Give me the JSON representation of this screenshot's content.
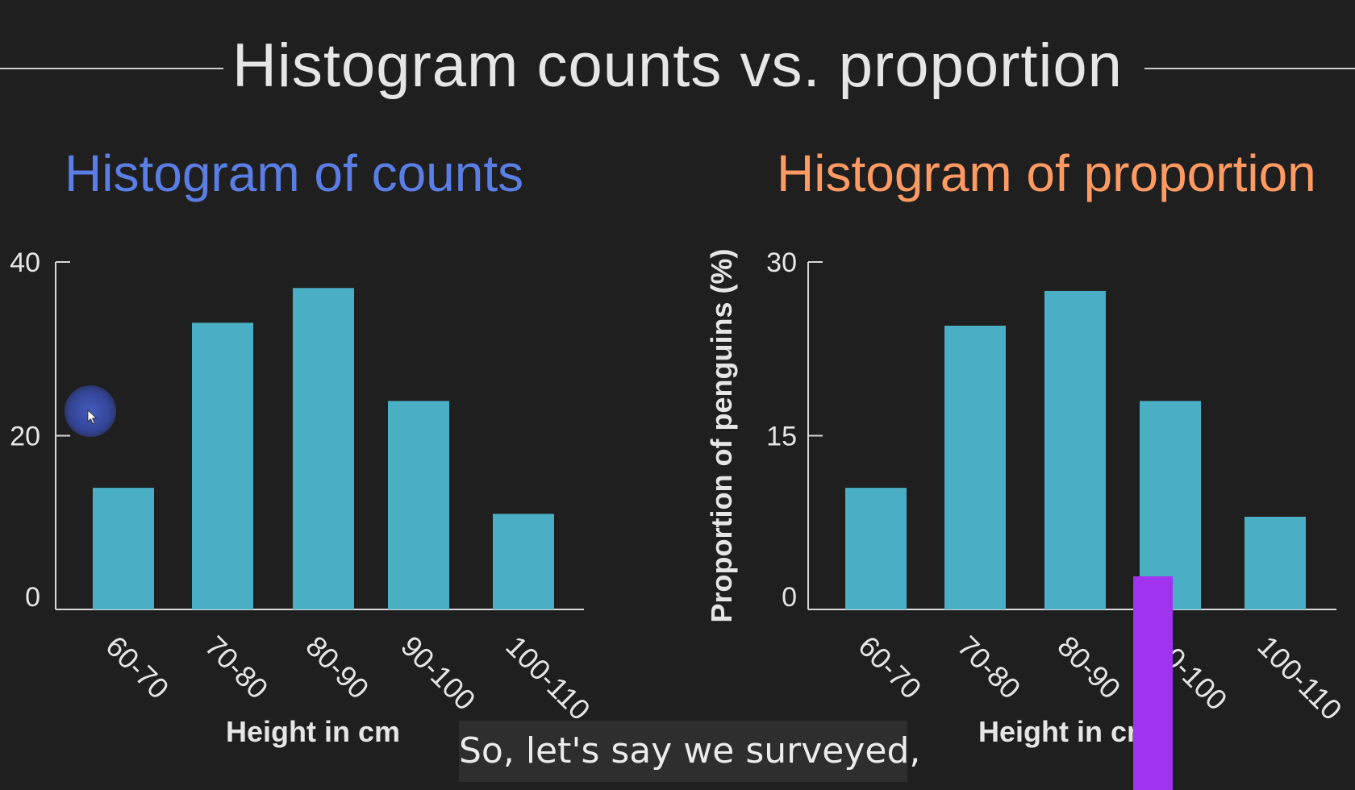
{
  "slide": {
    "title": "Histogram counts vs. proportion"
  },
  "colors": {
    "background": "#1f1f1f",
    "bar": "#4aafc4",
    "axis": "#d9d9d9",
    "left_heading": "#5b7ee6",
    "right_heading": "#ff9a63",
    "marker": "#a033ee"
  },
  "caption": {
    "text": "So, let's say we surveyed,"
  },
  "chart_data": [
    {
      "type": "bar",
      "title": "Histogram of counts",
      "categories": [
        "60-70",
        "70-80",
        "80-90",
        "90-100",
        "100-110"
      ],
      "values": [
        14,
        33,
        37,
        24,
        11
      ],
      "xlabel": "Height in cm",
      "ylabel": "",
      "ylim": [
        0,
        40
      ],
      "yticks": [
        0,
        20,
        40
      ],
      "grid": false,
      "legend": "none"
    },
    {
      "type": "bar",
      "title": "Histogram of proportion",
      "categories": [
        "60-70",
        "70-80",
        "80-90",
        "90-100",
        "100-110"
      ],
      "values": [
        10.5,
        24.5,
        27.5,
        18,
        8
      ],
      "xlabel": "Height in cm",
      "ylabel": "Proportion of penguins (%)",
      "ylim": [
        0,
        30
      ],
      "yticks": [
        0,
        15,
        30
      ],
      "grid": false,
      "legend": "none"
    }
  ]
}
